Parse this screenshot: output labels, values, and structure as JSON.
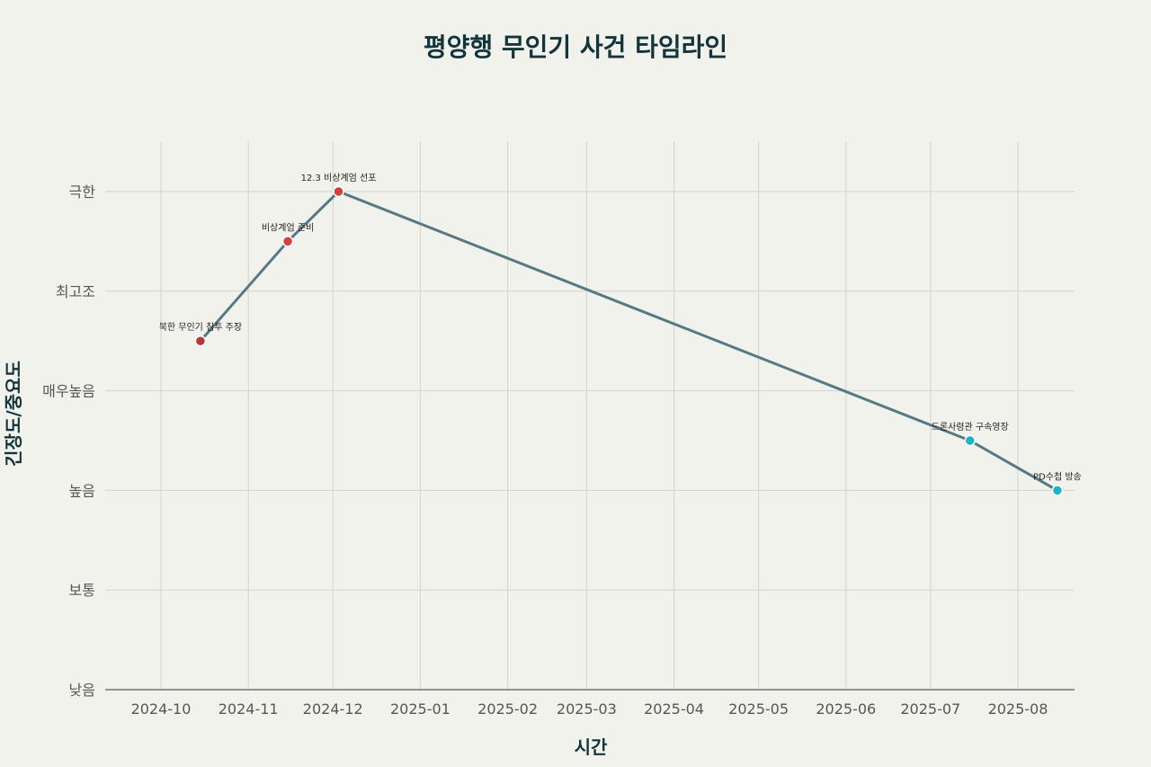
{
  "chart_data": {
    "type": "line",
    "title": "평양행 무인기 사건 타임라인",
    "xlabel": "시간",
    "ylabel": "긴장도/중요도",
    "x_ticks": [
      "2024-10",
      "2024-11",
      "2024-12",
      "2025-01",
      "2025-02",
      "2025-03",
      "2025-04",
      "2025-05",
      "2025-06",
      "2025-07",
      "2025-08"
    ],
    "y_ticks": [
      "낮음",
      "보통",
      "높음",
      "매우높음",
      "최고조",
      "극한"
    ],
    "ylim": [
      0,
      5.5
    ],
    "grid": true,
    "points": [
      {
        "date": "2024-10-15",
        "level": 3.5,
        "label": "북한 무인기 침투 주장",
        "color": "#b03a3a"
      },
      {
        "date": "2024-11-15",
        "level": 4.5,
        "label": "비상계엄 준비",
        "color": "#d43f3f"
      },
      {
        "date": "2024-12-03",
        "level": 5.0,
        "label": "12.3 비상계엄 선포",
        "color": "#d43f3f"
      },
      {
        "date": "2025-07-15",
        "level": 2.5,
        "label": "드론사령관 구속영장",
        "color": "#1fb3c9"
      },
      {
        "date": "2025-08-15",
        "level": 2.0,
        "label": "PD수첩 방송",
        "color": "#1fb3c9"
      }
    ]
  }
}
